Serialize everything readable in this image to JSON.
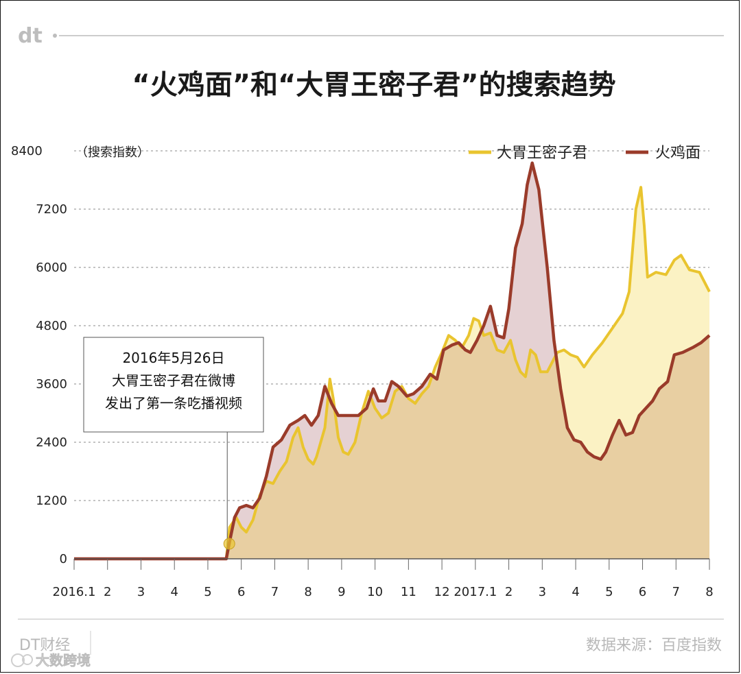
{
  "header": {
    "logo": "dt",
    "title": "“火鸡面”和“大胃王密子君”的搜索趋势"
  },
  "chart_data": {
    "type": "area",
    "ylabel": "（搜索指数）",
    "ylim": [
      0,
      8400
    ],
    "yticks": [
      0,
      1200,
      2400,
      3600,
      4800,
      6000,
      7200,
      8400
    ],
    "grid": true,
    "legend_position": "top-right",
    "x_tick_labels": [
      "2016.1",
      "2",
      "3",
      "4",
      "5",
      "6",
      "7",
      "8",
      "9",
      "10",
      "11",
      "12",
      "2017.1",
      "2",
      "3",
      "4",
      "5",
      "6",
      "7",
      "8"
    ],
    "x_range": [
      0,
      19
    ],
    "series": [
      {
        "name": "大胃王密子君",
        "color": "#E9C42F",
        "fill": "#FBF2C4",
        "points": [
          [
            0,
            0
          ],
          [
            4.55,
            0
          ],
          [
            4.65,
            650
          ],
          [
            4.85,
            850
          ],
          [
            5.0,
            650
          ],
          [
            5.15,
            550
          ],
          [
            5.35,
            800
          ],
          [
            5.55,
            1300
          ],
          [
            5.75,
            1600
          ],
          [
            5.95,
            1550
          ],
          [
            6.15,
            1800
          ],
          [
            6.35,
            2000
          ],
          [
            6.55,
            2500
          ],
          [
            6.7,
            2700
          ],
          [
            6.85,
            2300
          ],
          [
            7.0,
            2050
          ],
          [
            7.15,
            1950
          ],
          [
            7.25,
            2100
          ],
          [
            7.5,
            2700
          ],
          [
            7.65,
            3700
          ],
          [
            7.75,
            3300
          ],
          [
            7.9,
            2500
          ],
          [
            8.05,
            2200
          ],
          [
            8.2,
            2150
          ],
          [
            8.4,
            2400
          ],
          [
            8.6,
            3000
          ],
          [
            8.8,
            3450
          ],
          [
            9.0,
            3100
          ],
          [
            9.2,
            2900
          ],
          [
            9.4,
            3000
          ],
          [
            9.6,
            3450
          ],
          [
            9.8,
            3550
          ],
          [
            10.0,
            3300
          ],
          [
            10.2,
            3200
          ],
          [
            10.4,
            3400
          ],
          [
            10.6,
            3550
          ],
          [
            10.8,
            3950
          ],
          [
            11.0,
            4250
          ],
          [
            11.2,
            4600
          ],
          [
            11.4,
            4500
          ],
          [
            11.6,
            4350
          ],
          [
            11.8,
            4600
          ],
          [
            11.95,
            4950
          ],
          [
            12.1,
            4900
          ],
          [
            12.25,
            4600
          ],
          [
            12.45,
            4650
          ],
          [
            12.65,
            4300
          ],
          [
            12.85,
            4250
          ],
          [
            13.05,
            4500
          ],
          [
            13.2,
            4100
          ],
          [
            13.35,
            3850
          ],
          [
            13.5,
            3750
          ],
          [
            13.65,
            4300
          ],
          [
            13.8,
            4200
          ],
          [
            13.95,
            3850
          ],
          [
            14.15,
            3850
          ],
          [
            14.45,
            4250
          ],
          [
            14.65,
            4300
          ],
          [
            14.85,
            4200
          ],
          [
            15.05,
            4150
          ],
          [
            15.25,
            3950
          ],
          [
            15.5,
            4200
          ],
          [
            15.8,
            4450
          ],
          [
            16.1,
            4750
          ],
          [
            16.4,
            5050
          ],
          [
            16.6,
            5500
          ],
          [
            16.8,
            7200
          ],
          [
            16.95,
            7650
          ],
          [
            17.05,
            6850
          ],
          [
            17.15,
            5800
          ],
          [
            17.4,
            5900
          ],
          [
            17.7,
            5850
          ],
          [
            17.95,
            6150
          ],
          [
            18.15,
            6250
          ],
          [
            18.4,
            5950
          ],
          [
            18.7,
            5900
          ],
          [
            19.0,
            5500
          ]
        ]
      },
      {
        "name": "火鸡面",
        "color": "#9A3B2A",
        "fill": "#E5D1D3",
        "points": [
          [
            0,
            0
          ],
          [
            4.55,
            0
          ],
          [
            4.65,
            350
          ],
          [
            4.8,
            850
          ],
          [
            4.95,
            1050
          ],
          [
            5.15,
            1100
          ],
          [
            5.35,
            1050
          ],
          [
            5.55,
            1250
          ],
          [
            5.75,
            1700
          ],
          [
            5.95,
            2300
          ],
          [
            6.2,
            2450
          ],
          [
            6.45,
            2750
          ],
          [
            6.7,
            2850
          ],
          [
            6.9,
            2950
          ],
          [
            7.1,
            2750
          ],
          [
            7.3,
            2950
          ],
          [
            7.5,
            3550
          ],
          [
            7.7,
            3200
          ],
          [
            7.9,
            2950
          ],
          [
            8.2,
            2950
          ],
          [
            8.5,
            2950
          ],
          [
            8.75,
            3100
          ],
          [
            8.95,
            3500
          ],
          [
            9.1,
            3250
          ],
          [
            9.3,
            3250
          ],
          [
            9.5,
            3650
          ],
          [
            9.7,
            3550
          ],
          [
            9.95,
            3350
          ],
          [
            10.15,
            3400
          ],
          [
            10.4,
            3550
          ],
          [
            10.65,
            3800
          ],
          [
            10.85,
            3700
          ],
          [
            11.05,
            4300
          ],
          [
            11.3,
            4400
          ],
          [
            11.5,
            4450
          ],
          [
            11.7,
            4300
          ],
          [
            11.85,
            4250
          ],
          [
            12.05,
            4500
          ],
          [
            12.25,
            4800
          ],
          [
            12.45,
            5200
          ],
          [
            12.65,
            4600
          ],
          [
            12.85,
            4550
          ],
          [
            13.0,
            5150
          ],
          [
            13.2,
            6400
          ],
          [
            13.4,
            6900
          ],
          [
            13.55,
            7700
          ],
          [
            13.7,
            8150
          ],
          [
            13.9,
            7600
          ],
          [
            14.15,
            6000
          ],
          [
            14.35,
            4500
          ],
          [
            14.55,
            3500
          ],
          [
            14.75,
            2700
          ],
          [
            14.95,
            2450
          ],
          [
            15.15,
            2400
          ],
          [
            15.35,
            2200
          ],
          [
            15.55,
            2100
          ],
          [
            15.75,
            2050
          ],
          [
            15.9,
            2200
          ],
          [
            16.1,
            2550
          ],
          [
            16.3,
            2850
          ],
          [
            16.5,
            2550
          ],
          [
            16.7,
            2600
          ],
          [
            16.9,
            2950
          ],
          [
            17.1,
            3100
          ],
          [
            17.3,
            3250
          ],
          [
            17.5,
            3500
          ],
          [
            17.75,
            3650
          ],
          [
            17.95,
            4200
          ],
          [
            18.2,
            4250
          ],
          [
            18.5,
            4350
          ],
          [
            18.75,
            4450
          ],
          [
            19.0,
            4600
          ]
        ]
      }
    ],
    "annotation": {
      "lines": [
        "2016年5月26日",
        "大胃王密子君在微博",
        "发出了第一条吃播视频"
      ],
      "x": 4.58
    }
  },
  "footer": {
    "left": "DT财经",
    "right": "数据来源：百度指数",
    "watermark": "大数跨境"
  }
}
